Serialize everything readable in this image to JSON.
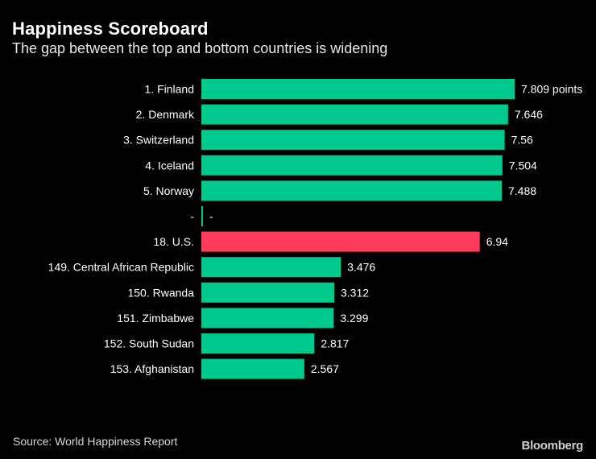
{
  "title": "Happiness Scoreboard",
  "subtitle": "The gap between the top and bottom countries is widening",
  "source": "Source: World Happiness Report",
  "brand": "Bloomberg",
  "colors": {
    "bar_default": "#00c98d",
    "bar_highlight": "#ff3b5c",
    "background": "#000000",
    "text": "#ffffff"
  },
  "chart_data": {
    "type": "bar",
    "orientation": "horizontal",
    "title": "Happiness Scoreboard",
    "xlabel": "",
    "ylabel": "",
    "xlim": [
      0,
      7.809
    ],
    "unit_suffix": "points",
    "categories": [
      "1. Finland",
      "2. Denmark",
      "3. Switzerland",
      "4. Iceland",
      "5. Norway",
      "-",
      "18. U.S.",
      "149. Central African Republic",
      "150. Rwanda",
      "151. Zimbabwe",
      "152. South Sudan",
      "153. Afghanistan"
    ],
    "values": [
      7.809,
      7.646,
      7.56,
      7.504,
      7.488,
      null,
      6.94,
      3.476,
      3.312,
      3.299,
      2.817,
      2.567
    ],
    "value_labels": [
      "7.809 points",
      "7.646",
      "7.56",
      "7.504",
      "7.488",
      "-",
      "6.94",
      "3.476",
      "3.312",
      "3.299",
      "2.817",
      "2.567"
    ],
    "highlight": [
      "18. U.S."
    ]
  }
}
